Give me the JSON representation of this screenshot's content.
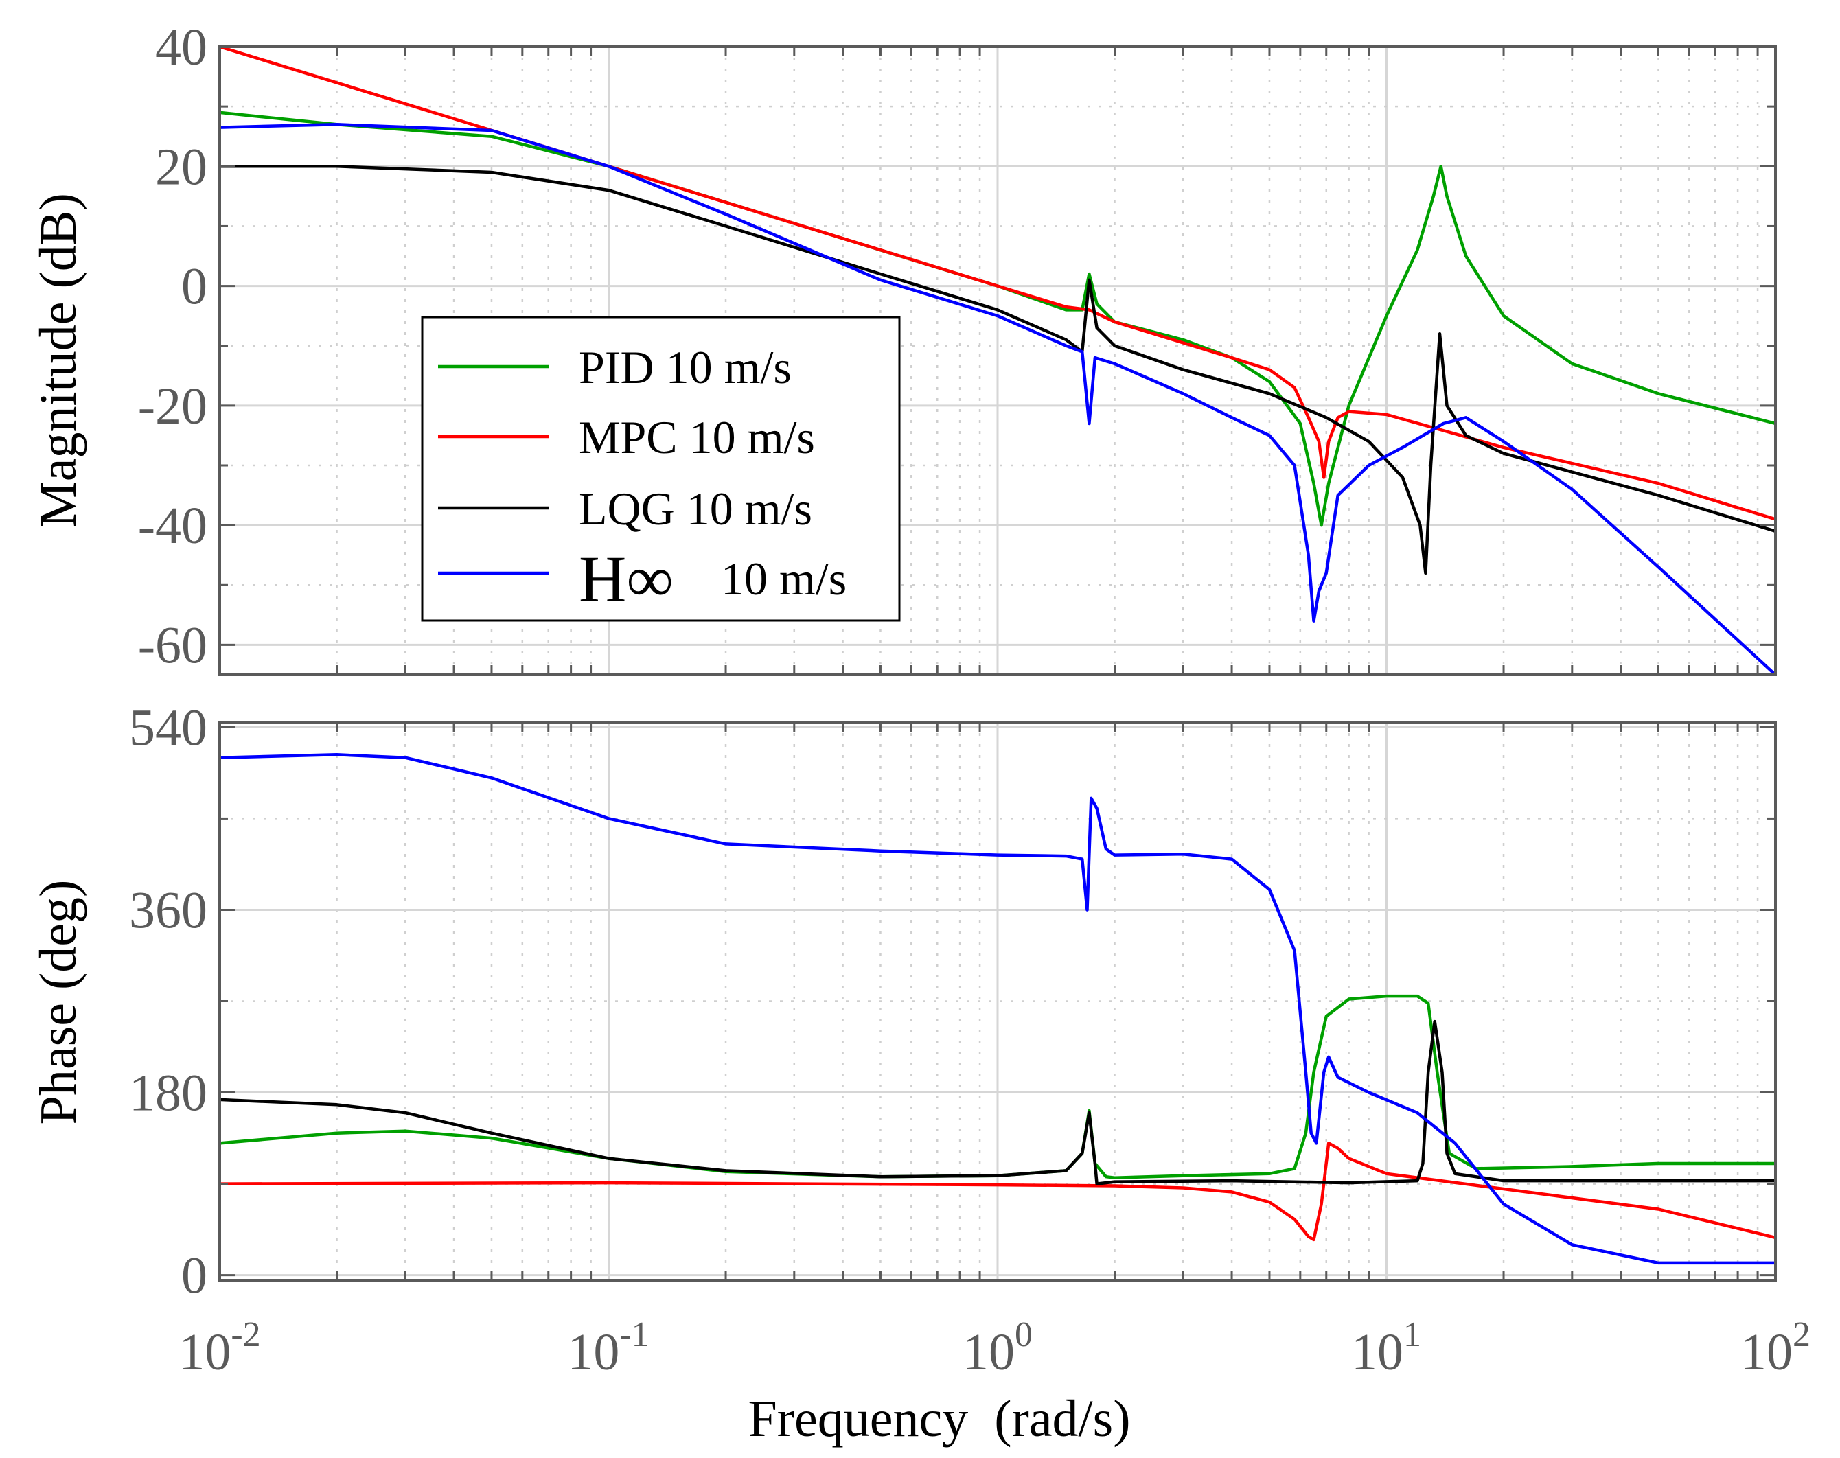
{
  "chart_data": {
    "type": "line",
    "xscale": "log",
    "xlim": [
      0.01,
      100
    ],
    "xlabel": "Frequency  (rad/s)",
    "x_tick_labels": [
      {
        "base": "10",
        "exp": "-2"
      },
      {
        "base": "10",
        "exp": "-1"
      },
      {
        "base": "10",
        "exp": "0"
      },
      {
        "base": "10",
        "exp": "1"
      },
      {
        "base": "10",
        "exp": "2"
      }
    ],
    "grid": true,
    "colors": {
      "PID": "#00a000",
      "MPC": "#ff0000",
      "LQG": "#000000",
      "Hinf": "#0000ff",
      "axis": "#5a5a5a"
    },
    "legend": {
      "location": "inside, middle-left of magnitude plot",
      "entries": [
        {
          "key": "PID",
          "label": "PID 10 m/s",
          "color": "#00a000"
        },
        {
          "key": "MPC",
          "label": "MPC 10 m/s",
          "color": "#ff0000"
        },
        {
          "key": "LQG",
          "label": "LQG 10 m/s",
          "color": "#000000"
        },
        {
          "key": "Hinf",
          "label": "10 m/s",
          "symbol": "H∞",
          "color": "#0000ff"
        }
      ]
    },
    "subplots": [
      {
        "name": "magnitude",
        "ylabel": "Magnitude (dB)",
        "ylim": [
          -65,
          40
        ],
        "yticks": [
          40,
          20,
          0,
          -20,
          -40,
          -60
        ],
        "series": [
          {
            "key": "PID",
            "name": "PID 10 m/s",
            "points": [
              [
                0.01,
                29
              ],
              [
                0.02,
                27
              ],
              [
                0.05,
                25
              ],
              [
                0.1,
                20
              ],
              [
                0.2,
                14
              ],
              [
                0.5,
                6
              ],
              [
                1,
                0
              ],
              [
                1.5,
                -4
              ],
              [
                1.65,
                -4
              ],
              [
                1.72,
                2
              ],
              [
                1.8,
                -3
              ],
              [
                2,
                -6
              ],
              [
                3,
                -9
              ],
              [
                4,
                -12
              ],
              [
                5,
                -16
              ],
              [
                6,
                -23
              ],
              [
                6.5,
                -33
              ],
              [
                6.8,
                -40
              ],
              [
                7.1,
                -33
              ],
              [
                8,
                -20
              ],
              [
                10,
                -5
              ],
              [
                12,
                6
              ],
              [
                13.2,
                15
              ],
              [
                13.8,
                20
              ],
              [
                14.3,
                15
              ],
              [
                16,
                5
              ],
              [
                20,
                -5
              ],
              [
                30,
                -13
              ],
              [
                50,
                -18
              ],
              [
                100,
                -23
              ]
            ]
          },
          {
            "key": "MPC",
            "name": "MPC 10 m/s",
            "points": [
              [
                0.01,
                40
              ],
              [
                0.1,
                20
              ],
              [
                1,
                0
              ],
              [
                1.5,
                -3.5
              ],
              [
                1.72,
                -4
              ],
              [
                2,
                -6
              ],
              [
                4,
                -12
              ],
              [
                5,
                -14
              ],
              [
                5.8,
                -17
              ],
              [
                6.3,
                -22
              ],
              [
                6.7,
                -26
              ],
              [
                6.9,
                -32
              ],
              [
                7.1,
                -26
              ],
              [
                7.5,
                -22
              ],
              [
                8,
                -21
              ],
              [
                10,
                -21.5
              ],
              [
                20,
                -27
              ],
              [
                50,
                -33
              ],
              [
                100,
                -39
              ]
            ]
          },
          {
            "key": "LQG",
            "name": "LQG 10 m/s",
            "points": [
              [
                0.01,
                20
              ],
              [
                0.02,
                20
              ],
              [
                0.05,
                19
              ],
              [
                0.1,
                16
              ],
              [
                0.2,
                10
              ],
              [
                0.5,
                2
              ],
              [
                1,
                -4
              ],
              [
                1.5,
                -9
              ],
              [
                1.65,
                -11
              ],
              [
                1.72,
                1
              ],
              [
                1.8,
                -7
              ],
              [
                2,
                -10
              ],
              [
                3,
                -14
              ],
              [
                5,
                -18
              ],
              [
                7,
                -22
              ],
              [
                9,
                -26
              ],
              [
                11,
                -32
              ],
              [
                12.2,
                -40
              ],
              [
                12.6,
                -48
              ],
              [
                13,
                -30
              ],
              [
                13.7,
                -8
              ],
              [
                14.3,
                -20
              ],
              [
                16,
                -25
              ],
              [
                20,
                -28
              ],
              [
                50,
                -35
              ],
              [
                100,
                -41
              ]
            ]
          },
          {
            "key": "Hinf",
            "name": "H∞ 10 m/s",
            "points": [
              [
                0.01,
                26.5
              ],
              [
                0.02,
                27
              ],
              [
                0.05,
                26
              ],
              [
                0.1,
                20
              ],
              [
                0.2,
                12
              ],
              [
                0.5,
                1
              ],
              [
                1,
                -5
              ],
              [
                1.5,
                -10
              ],
              [
                1.65,
                -11
              ],
              [
                1.72,
                -23
              ],
              [
                1.78,
                -12
              ],
              [
                2,
                -13
              ],
              [
                3,
                -18
              ],
              [
                4,
                -22
              ],
              [
                5,
                -25
              ],
              [
                5.8,
                -30
              ],
              [
                6.3,
                -45
              ],
              [
                6.5,
                -56
              ],
              [
                6.7,
                -51
              ],
              [
                7,
                -48
              ],
              [
                7.5,
                -35
              ],
              [
                9,
                -30
              ],
              [
                11,
                -27
              ],
              [
                14,
                -23
              ],
              [
                16,
                -22
              ],
              [
                20,
                -26
              ],
              [
                30,
                -34
              ],
              [
                50,
                -47
              ],
              [
                100,
                -65
              ]
            ]
          }
        ]
      },
      {
        "name": "phase",
        "ylabel": "Phase (deg)",
        "ylim": [
          -5,
          545
        ],
        "yticks": [
          540,
          360,
          180,
          0
        ],
        "series": [
          {
            "key": "PID",
            "name": "PID 10 m/s",
            "points": [
              [
                0.01,
                130
              ],
              [
                0.02,
                140
              ],
              [
                0.03,
                142
              ],
              [
                0.05,
                135
              ],
              [
                0.1,
                115
              ],
              [
                0.2,
                102
              ],
              [
                0.5,
                97
              ],
              [
                1,
                98
              ],
              [
                1.5,
                103
              ],
              [
                1.65,
                120
              ],
              [
                1.72,
                162
              ],
              [
                1.78,
                110
              ],
              [
                1.9,
                97
              ],
              [
                2,
                96
              ],
              [
                3,
                98
              ],
              [
                5,
                100
              ],
              [
                5.8,
                105
              ],
              [
                6.2,
                140
              ],
              [
                6.5,
                200
              ],
              [
                7,
                255
              ],
              [
                8,
                272
              ],
              [
                10,
                275
              ],
              [
                12,
                275
              ],
              [
                12.8,
                268
              ],
              [
                13.5,
                200
              ],
              [
                14.5,
                120
              ],
              [
                17,
                105
              ],
              [
                30,
                107
              ],
              [
                50,
                110
              ],
              [
                100,
                110
              ]
            ]
          },
          {
            "key": "MPC",
            "name": "MPC 10 m/s",
            "points": [
              [
                0.01,
                90
              ],
              [
                0.1,
                91
              ],
              [
                1,
                89
              ],
              [
                2,
                88
              ],
              [
                3,
                86
              ],
              [
                4,
                82
              ],
              [
                5,
                72
              ],
              [
                5.8,
                55
              ],
              [
                6.3,
                38
              ],
              [
                6.5,
                35
              ],
              [
                6.8,
                70
              ],
              [
                7.1,
                130
              ],
              [
                7.5,
                125
              ],
              [
                8,
                115
              ],
              [
                10,
                100
              ],
              [
                20,
                85
              ],
              [
                50,
                65
              ],
              [
                100,
                37
              ]
            ]
          },
          {
            "key": "LQG",
            "name": "LQG 10 m/s",
            "points": [
              [
                0.01,
                173
              ],
              [
                0.02,
                168
              ],
              [
                0.03,
                160
              ],
              [
                0.05,
                140
              ],
              [
                0.1,
                115
              ],
              [
                0.2,
                103
              ],
              [
                0.5,
                97
              ],
              [
                1,
                98
              ],
              [
                1.5,
                103
              ],
              [
                1.65,
                120
              ],
              [
                1.72,
                160
              ],
              [
                1.78,
                110
              ],
              [
                1.8,
                90
              ],
              [
                2,
                92
              ],
              [
                4,
                93
              ],
              [
                8,
                91
              ],
              [
                12,
                93
              ],
              [
                12.4,
                110
              ],
              [
                12.8,
                200
              ],
              [
                13.3,
                250
              ],
              [
                13.9,
                200
              ],
              [
                14.3,
                120
              ],
              [
                15,
                100
              ],
              [
                20,
                93
              ],
              [
                100,
                93
              ]
            ]
          },
          {
            "key": "Hinf",
            "name": "H∞ 10 m/s",
            "points": [
              [
                0.01,
                510
              ],
              [
                0.02,
                513
              ],
              [
                0.03,
                510
              ],
              [
                0.05,
                490
              ],
              [
                0.1,
                450
              ],
              [
                0.2,
                425
              ],
              [
                0.5,
                418
              ],
              [
                1,
                414
              ],
              [
                1.5,
                413
              ],
              [
                1.65,
                410
              ],
              [
                1.7,
                360
              ],
              [
                1.74,
                470
              ],
              [
                1.8,
                460
              ],
              [
                1.9,
                420
              ],
              [
                2,
                414
              ],
              [
                3,
                415
              ],
              [
                4,
                410
              ],
              [
                5,
                380
              ],
              [
                5.8,
                320
              ],
              [
                6.2,
                200
              ],
              [
                6.4,
                140
              ],
              [
                6.6,
                130
              ],
              [
                6.9,
                200
              ],
              [
                7.1,
                215
              ],
              [
                7.5,
                195
              ],
              [
                9,
                180
              ],
              [
                12,
                160
              ],
              [
                15,
                130
              ],
              [
                20,
                70
              ],
              [
                30,
                30
              ],
              [
                50,
                12
              ],
              [
                100,
                12
              ]
            ]
          }
        ]
      }
    ]
  }
}
